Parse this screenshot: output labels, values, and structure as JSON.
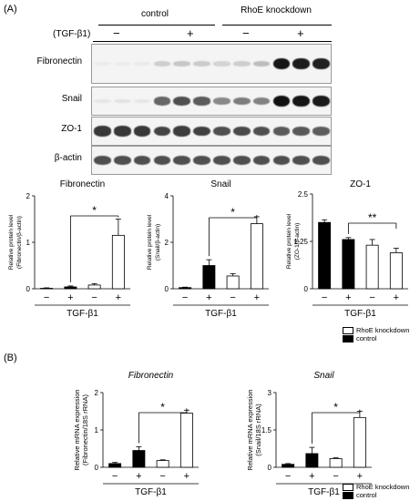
{
  "panel_a_label": "(A)",
  "panel_b_label": "(B)",
  "treatment_label": "(TGF-β1)",
  "group_control": "control",
  "group_knockdown": "RhoE knockdown",
  "treatment_signs": [
    "−",
    "+",
    "−",
    "+"
  ],
  "blot_rows": [
    {
      "name": "Fibronectin",
      "intensities": [
        0.02,
        0.02,
        0.03,
        0.15,
        0.18,
        0.16,
        0.12,
        0.15,
        0.22,
        0.95,
        0.92,
        0.9
      ]
    },
    {
      "name": "Snail",
      "intensities": [
        0.05,
        0.06,
        0.05,
        0.6,
        0.7,
        0.65,
        0.45,
        0.5,
        0.48,
        0.97,
        0.95,
        0.93
      ]
    },
    {
      "name": "ZO-1",
      "intensities": [
        0.8,
        0.8,
        0.8,
        0.75,
        0.78,
        0.76,
        0.7,
        0.72,
        0.7,
        0.65,
        0.66,
        0.64
      ]
    },
    {
      "name": "β-actin",
      "intensities": [
        0.7,
        0.7,
        0.7,
        0.7,
        0.7,
        0.7,
        0.7,
        0.7,
        0.7,
        0.7,
        0.7,
        0.7
      ]
    }
  ],
  "legend": {
    "knockdown": "RhoE knockdown",
    "control": "control",
    "fill_knockdown": "#ffffff",
    "fill_control": "#000000"
  },
  "xlabel": "TGF-β1",
  "chart_data": [
    {
      "type": "bar",
      "title": "Fibronectin",
      "ylabel": "Relative protein level (Fibronectin/β-actin)",
      "ylim": [
        0,
        2
      ],
      "yticks": [
        0,
        1,
        2
      ],
      "categories": [
        "−",
        "+",
        "−",
        "+"
      ],
      "values": [
        0.01,
        0.04,
        0.08,
        1.15
      ],
      "errors": [
        0.01,
        0.02,
        0.03,
        0.35
      ],
      "fills": [
        "black",
        "black",
        "white",
        "white"
      ],
      "sig": "*",
      "sig_from": 1,
      "sig_to": 3
    },
    {
      "type": "bar",
      "title": "Snail",
      "ylabel": "Relative protein level (Snail/β-actin)",
      "ylim": [
        0,
        4
      ],
      "yticks": [
        0,
        2,
        4
      ],
      "categories": [
        "−",
        "+",
        "−",
        "+"
      ],
      "values": [
        0.05,
        1.0,
        0.55,
        2.8
      ],
      "errors": [
        0.02,
        0.25,
        0.1,
        0.3
      ],
      "fills": [
        "black",
        "black",
        "white",
        "white"
      ],
      "sig": "*",
      "sig_from": 1,
      "sig_to": 3
    },
    {
      "type": "bar",
      "title": "ZO-1",
      "ylabel": "Relative protein level (ZO-1/β-actin)",
      "ylim": [
        0,
        2.5
      ],
      "yticks": [
        0,
        1.25,
        2.5
      ],
      "categories": [
        "−",
        "+",
        "−",
        "+"
      ],
      "values": [
        1.75,
        1.3,
        1.15,
        0.95
      ],
      "errors": [
        0.07,
        0.05,
        0.15,
        0.12
      ],
      "fills": [
        "black",
        "black",
        "white",
        "white"
      ],
      "sig": "**",
      "sig_from": 1,
      "sig_to": 3
    },
    {
      "type": "bar",
      "title": "Fibronectin",
      "ylabel": "Relative mRNA expression (Fibronectin/18S rRNA)",
      "ylim": [
        0,
        2
      ],
      "yticks": [
        0,
        1,
        2
      ],
      "categories": [
        "−",
        "+",
        "−",
        "+"
      ],
      "values": [
        0.1,
        0.45,
        0.18,
        1.45
      ],
      "errors": [
        0.03,
        0.1,
        0.02,
        0.08
      ],
      "fills": [
        "black",
        "black",
        "white",
        "white"
      ],
      "sig": "*",
      "sig_from": 1,
      "sig_to": 3
    },
    {
      "type": "bar",
      "title": "Snail",
      "ylabel": "Relative mRNA expression (Snail/18S rRNA)",
      "ylim": [
        0,
        3
      ],
      "yticks": [
        0,
        1.5,
        3
      ],
      "categories": [
        "−",
        "+",
        "−",
        "+"
      ],
      "values": [
        0.12,
        0.55,
        0.35,
        2.0
      ],
      "errors": [
        0.03,
        0.25,
        0.03,
        0.25
      ],
      "fills": [
        "black",
        "black",
        "white",
        "white"
      ],
      "sig": "*",
      "sig_from": 1,
      "sig_to": 3
    }
  ]
}
